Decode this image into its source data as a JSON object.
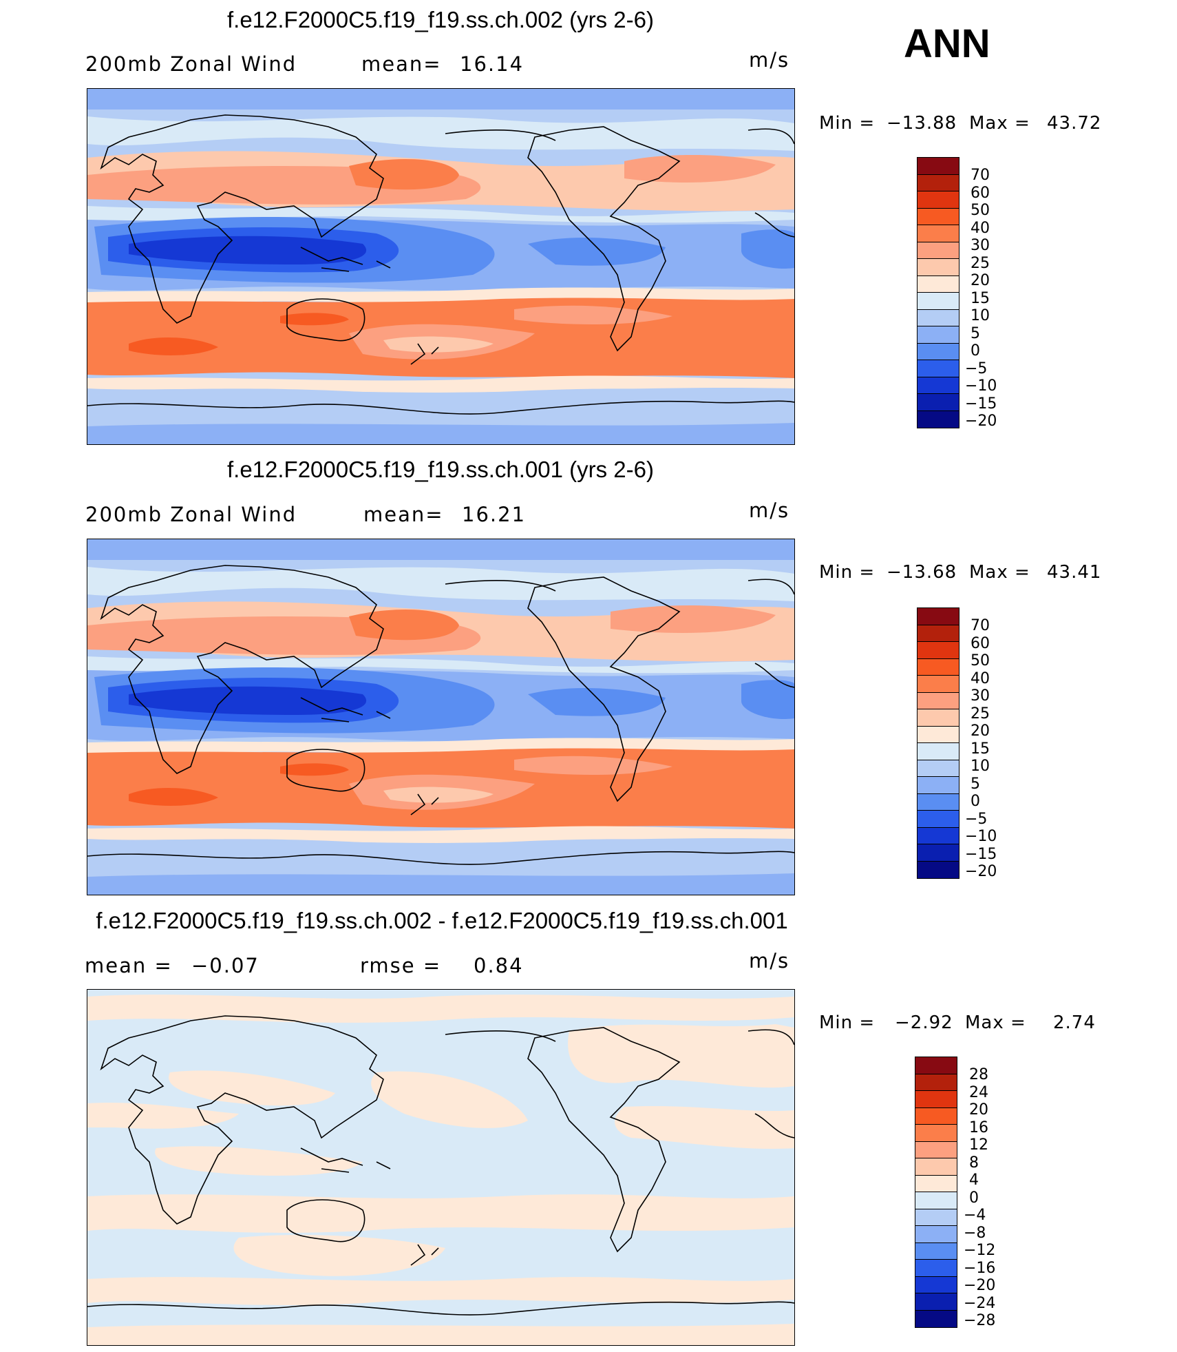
{
  "season": "ANN",
  "panels": [
    {
      "title": "f.e12.F2000C5.f19_f19.ss.ch.002 (yrs 2-6)",
      "left_label": "200mb Zonal Wind",
      "stat_label": "mean=",
      "stat_value": "16.14",
      "stat2_label": "",
      "stat2_value": "",
      "units": "m/s",
      "min_label": "Min =",
      "min_value": "−13.88",
      "max_label": "Max =",
      "max_value": "43.72",
      "levels": [
        "70",
        "60",
        "50",
        "40",
        "30",
        "25",
        "20",
        "15",
        "10",
        "5",
        "0",
        "−5",
        "−10",
        "−15",
        "−20"
      ]
    },
    {
      "title": "f.e12.F2000C5.f19_f19.ss.ch.001 (yrs 2-6)",
      "left_label": "200mb Zonal Wind",
      "stat_label": "mean=",
      "stat_value": "16.21",
      "stat2_label": "",
      "stat2_value": "",
      "units": "m/s",
      "min_label": "Min =",
      "min_value": "−13.68",
      "max_label": "Max =",
      "max_value": "43.41",
      "levels": [
        "70",
        "60",
        "50",
        "40",
        "30",
        "25",
        "20",
        "15",
        "10",
        "5",
        "0",
        "−5",
        "−10",
        "−15",
        "−20"
      ]
    },
    {
      "title": "f.e12.F2000C5.f19_f19.ss.ch.002 - f.e12.F2000C5.f19_f19.ss.ch.001",
      "left_label": "mean =",
      "stat_label": "",
      "stat_value": "−0.07",
      "stat2_label": "rmse =",
      "stat2_value": "0.84",
      "units": "m/s",
      "min_label": "Min =",
      "min_value": "−2.92",
      "max_label": "Max =",
      "max_value": "2.74",
      "levels": [
        "28",
        "24",
        "20",
        "16",
        "12",
        "8",
        "4",
        "0",
        "−4",
        "−8",
        "−12",
        "−16",
        "−20",
        "−24",
        "−28"
      ]
    }
  ],
  "colorbar_colors": [
    "#870a12",
    "#b3210c",
    "#e03510",
    "#f75a22",
    "#fb7e4a",
    "#fca080",
    "#fdc9ad",
    "#fee9d8",
    "#d9eaf7",
    "#b4cdf5",
    "#8cb0f5",
    "#5a8ef2",
    "#2c5eeb",
    "#1538d4",
    "#0a1fb0",
    "#050a85"
  ]
}
